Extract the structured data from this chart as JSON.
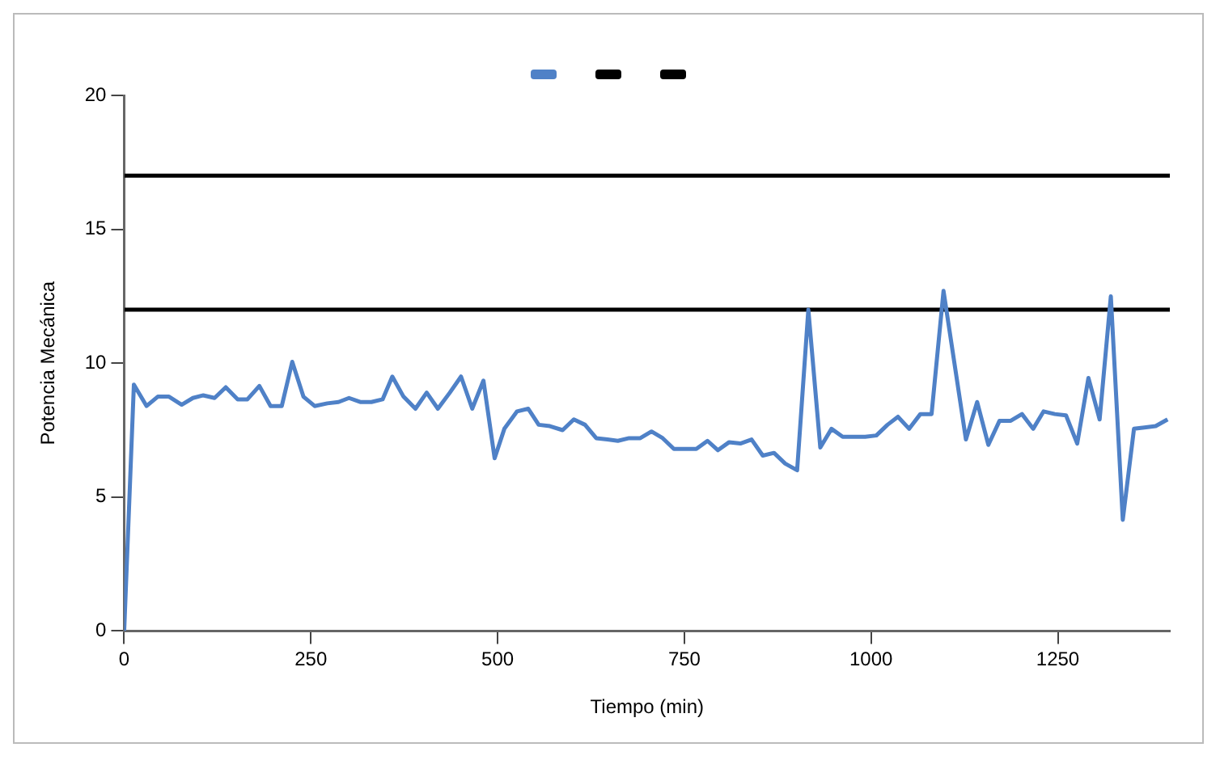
{
  "chart_data": {
    "type": "line",
    "xlabel": "Tiempo (min)",
    "ylabel": "Potencia Mecánica",
    "xlim": [
      0,
      1400
    ],
    "xticks": [
      0,
      250,
      500,
      750,
      1000,
      1250
    ],
    "ylim": [
      0,
      20
    ],
    "yticks": [
      0,
      5,
      10,
      15,
      20
    ],
    "grid": false,
    "marker": "none",
    "line_style": "solid",
    "series": [
      {
        "color": "#4f81c7",
        "x": [
          0,
          13,
          30,
          45,
          60,
          77,
          92,
          106,
          121,
          136,
          152,
          165,
          181,
          196,
          211,
          225,
          240,
          255,
          272,
          287,
          301,
          316,
          331,
          346,
          359,
          374,
          390,
          405,
          420,
          436,
          451,
          466,
          481,
          496,
          509,
          526,
          541,
          555,
          570,
          587,
          602,
          617,
          632,
          647,
          661,
          676,
          691,
          706,
          721,
          736,
          751,
          766,
          781,
          795,
          810,
          825,
          840,
          855,
          870,
          885,
          901,
          916,
          932,
          947,
          962,
          977,
          992,
          1007,
          1022,
          1036,
          1051,
          1066,
          1081,
          1097,
          1127,
          1142,
          1157,
          1172,
          1187,
          1202,
          1217,
          1231,
          1246,
          1261,
          1276,
          1291,
          1306,
          1321,
          1337,
          1352,
          1366,
          1381,
          1397
        ],
        "values": [
          0,
          9.2,
          8.4,
          8.75,
          8.75,
          8.45,
          8.7,
          8.8,
          8.7,
          9.1,
          8.65,
          8.65,
          9.15,
          8.4,
          8.4,
          10.05,
          8.75,
          8.4,
          8.5,
          8.55,
          8.7,
          8.55,
          8.55,
          8.65,
          9.5,
          8.75,
          8.3,
          8.9,
          8.3,
          8.9,
          9.5,
          8.3,
          9.35,
          6.45,
          7.55,
          8.2,
          8.3,
          7.7,
          7.65,
          7.5,
          7.9,
          7.7,
          7.2,
          7.15,
          7.1,
          7.2,
          7.2,
          7.45,
          7.2,
          6.8,
          6.8,
          6.8,
          7.1,
          6.75,
          7.05,
          7.0,
          7.15,
          6.55,
          6.65,
          6.25,
          6.0,
          12.0,
          6.85,
          7.55,
          7.25,
          7.25,
          7.25,
          7.3,
          7.7,
          8.0,
          7.55,
          8.1,
          8.1,
          12.7,
          7.15,
          8.55,
          6.95,
          7.85,
          7.85,
          8.1,
          7.55,
          8.2,
          8.1,
          8.05,
          7.0,
          9.45,
          7.9,
          12.5,
          4.15,
          7.55,
          7.6,
          7.65,
          7.9
        ]
      },
      {
        "color": "#000000",
        "x": [
          0,
          1400
        ],
        "values": [
          17,
          17
        ]
      },
      {
        "color": "#000000",
        "x": [
          0,
          1400
        ],
        "values": [
          12,
          12
        ]
      }
    ]
  }
}
